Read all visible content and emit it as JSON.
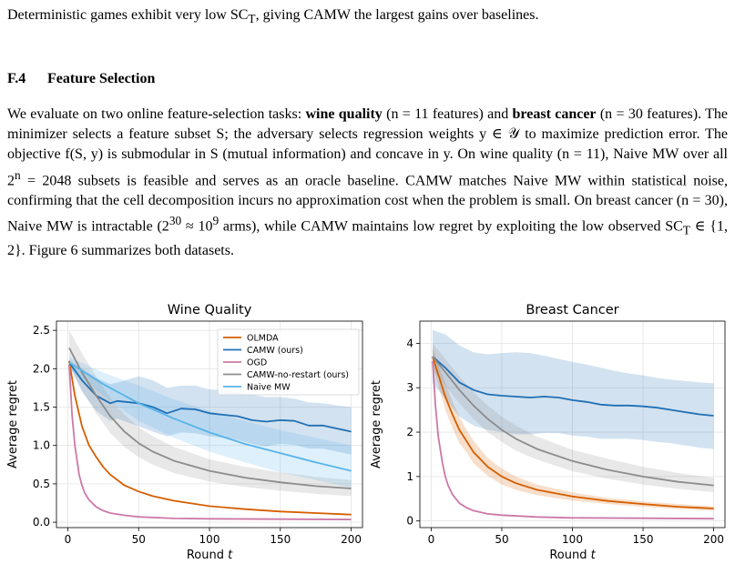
{
  "intro_line": {
    "text": "Deterministic games exhibit very low SC",
    "sub": "T",
    "rest": ", giving CAMW the largest gains over baselines."
  },
  "section": {
    "number": "F.4",
    "title": "Feature Selection"
  },
  "paragraph": {
    "p1": "We evaluate on two online feature-selection tasks: ",
    "b1": "wine quality",
    "p2": " (n = 11 features) and ",
    "b2": "breast cancer",
    "p3": " (n = 30 features). The minimizer selects a feature subset S; the adversary selects regression weights y ∈ 𝒴 to maximize prediction error. The objective f(S, y) is submodular in S (mutual information) and concave in y. On wine quality (n = 11), Naive MW over all 2",
    "sup1": "n",
    "p4": " = 2048 subsets is feasible and serves as an oracle baseline. CAMW matches Naive MW within statistical noise, confirming that the cell decomposition incurs no approximation cost when the problem is small. On breast cancer (n = 30), Naive MW is intractable (2",
    "sup2": "30",
    "p5": " ≈ 10",
    "sup3": "9",
    "p6": " arms), while CAMW maintains low regret by exploiting the low observed SC",
    "sub1": "T",
    "p7": " ∈ {1, 2}. Figure 6 summarizes both datasets."
  },
  "chart_data": [
    {
      "type": "line",
      "title": "Wine Quality",
      "xlabel": "Round t",
      "ylabel": "Average regret",
      "xlim": [
        -8,
        208
      ],
      "ylim": [
        -0.07,
        2.62
      ],
      "xticks": [
        0,
        50,
        100,
        150,
        200
      ],
      "yticks": [
        0.0,
        0.5,
        1.0,
        1.5,
        2.0,
        2.5
      ],
      "ytick_labels": [
        "0.0",
        "0.5",
        "1.0",
        "1.5",
        "2.0",
        "2.5"
      ],
      "grid": true,
      "legend_position": "upper-right",
      "series": [
        {
          "name": "OLMDA",
          "color": "#d55e00",
          "x": [
            1,
            5,
            10,
            15,
            20,
            25,
            30,
            40,
            50,
            60,
            75,
            100,
            125,
            150,
            175,
            200
          ],
          "y": [
            2.1,
            1.65,
            1.25,
            1.0,
            0.85,
            0.72,
            0.62,
            0.48,
            0.4,
            0.34,
            0.28,
            0.21,
            0.17,
            0.14,
            0.12,
            0.1
          ]
        },
        {
          "name": "CAMW (ours)",
          "color": "#1f6fb4",
          "x": [
            1,
            10,
            20,
            30,
            35,
            50,
            60,
            70,
            80,
            90,
            100,
            110,
            120,
            130,
            140,
            150,
            160,
            170,
            180,
            190,
            200
          ],
          "y": [
            2.08,
            1.85,
            1.65,
            1.55,
            1.58,
            1.55,
            1.5,
            1.42,
            1.48,
            1.47,
            1.42,
            1.4,
            1.38,
            1.33,
            1.31,
            1.33,
            1.32,
            1.26,
            1.26,
            1.22,
            1.18
          ],
          "band_upper": [
            2.12,
            2.0,
            1.88,
            1.8,
            1.82,
            1.9,
            1.85,
            1.75,
            1.78,
            1.78,
            1.73,
            1.72,
            1.7,
            1.66,
            1.63,
            1.63,
            1.61,
            1.56,
            1.55,
            1.52,
            1.5
          ],
          "band_lower": [
            2.04,
            1.7,
            1.45,
            1.32,
            1.35,
            1.25,
            1.18,
            1.12,
            1.17,
            1.16,
            1.12,
            1.1,
            1.07,
            1.02,
            0.99,
            1.02,
            1.01,
            0.96,
            0.96,
            0.92,
            0.88
          ]
        },
        {
          "name": "OGD",
          "color": "#cc79a7",
          "x": [
            1,
            3,
            5,
            8,
            10,
            12,
            15,
            20,
            25,
            30,
            40,
            50,
            75,
            100,
            150,
            200
          ],
          "y": [
            2.05,
            1.4,
            1.0,
            0.62,
            0.48,
            0.38,
            0.29,
            0.2,
            0.15,
            0.12,
            0.09,
            0.07,
            0.05,
            0.045,
            0.04,
            0.035
          ]
        },
        {
          "name": "CAMW-no-restart (ours)",
          "color": "#8c8c8c",
          "x": [
            1,
            10,
            20,
            30,
            40,
            50,
            60,
            75,
            100,
            125,
            150,
            175,
            200
          ],
          "y": [
            2.27,
            1.95,
            1.65,
            1.38,
            1.18,
            1.03,
            0.92,
            0.8,
            0.67,
            0.58,
            0.52,
            0.47,
            0.44
          ],
          "band_upper": [
            2.5,
            2.2,
            1.9,
            1.62,
            1.4,
            1.24,
            1.12,
            0.98,
            0.82,
            0.72,
            0.65,
            0.59,
            0.55
          ],
          "band_lower": [
            2.05,
            1.72,
            1.42,
            1.16,
            0.98,
            0.85,
            0.75,
            0.64,
            0.53,
            0.46,
            0.41,
            0.37,
            0.34
          ]
        },
        {
          "name": "Naive MW",
          "color": "#56b4e9",
          "x": [
            1,
            25,
            50,
            75,
            100,
            125,
            150,
            175,
            200
          ],
          "y": [
            2.08,
            1.8,
            1.55,
            1.35,
            1.17,
            1.02,
            0.9,
            0.78,
            0.67
          ],
          "band_upper": [
            2.15,
            1.95,
            1.78,
            1.6,
            1.45,
            1.32,
            1.2,
            1.1,
            1.0
          ],
          "band_lower": [
            2.0,
            1.65,
            1.32,
            1.1,
            0.92,
            0.78,
            0.65,
            0.55,
            0.45
          ]
        }
      ]
    },
    {
      "type": "line",
      "title": "Breast Cancer",
      "xlabel": "Round t",
      "ylabel": "Average regret",
      "xlim": [
        -8,
        208
      ],
      "ylim": [
        -0.15,
        4.5
      ],
      "xticks": [
        0,
        50,
        100,
        150,
        200
      ],
      "yticks": [
        0,
        1,
        2,
        3,
        4
      ],
      "ytick_labels": [
        "0",
        "1",
        "2",
        "3",
        "4"
      ],
      "grid": true,
      "series": [
        {
          "name": "OLMDA",
          "color": "#d55e00",
          "x": [
            1,
            5,
            10,
            15,
            20,
            25,
            30,
            40,
            50,
            60,
            75,
            100,
            125,
            150,
            175,
            200
          ],
          "y": [
            3.7,
            3.3,
            2.8,
            2.4,
            2.05,
            1.8,
            1.55,
            1.22,
            1.0,
            0.85,
            0.7,
            0.55,
            0.45,
            0.38,
            0.32,
            0.28
          ],
          "band_upper": [
            3.9,
            3.55,
            3.1,
            2.7,
            2.35,
            2.05,
            1.8,
            1.42,
            1.18,
            1.0,
            0.82,
            0.64,
            0.52,
            0.44,
            0.38,
            0.33
          ],
          "band_lower": [
            3.5,
            3.05,
            2.5,
            2.1,
            1.75,
            1.55,
            1.3,
            1.02,
            0.82,
            0.7,
            0.58,
            0.46,
            0.38,
            0.32,
            0.27,
            0.23
          ]
        },
        {
          "name": "CAMW (ours)",
          "color": "#1f6fb4",
          "x": [
            1,
            10,
            20,
            30,
            40,
            50,
            60,
            70,
            80,
            90,
            100,
            110,
            120,
            130,
            140,
            150,
            160,
            170,
            180,
            190,
            200
          ],
          "y": [
            3.7,
            3.45,
            3.12,
            2.95,
            2.85,
            2.82,
            2.8,
            2.78,
            2.8,
            2.78,
            2.72,
            2.68,
            2.62,
            2.6,
            2.6,
            2.58,
            2.55,
            2.5,
            2.45,
            2.4,
            2.37
          ],
          "band_upper": [
            4.3,
            4.2,
            3.95,
            3.8,
            3.75,
            3.78,
            3.8,
            3.78,
            3.72,
            3.65,
            3.58,
            3.52,
            3.45,
            3.38,
            3.32,
            3.28,
            3.22,
            3.18,
            3.15,
            3.12,
            3.1
          ],
          "band_lower": [
            3.1,
            2.75,
            2.35,
            2.15,
            2.05,
            2.0,
            1.95,
            1.95,
            1.98,
            1.98,
            1.92,
            1.9,
            1.85,
            1.85,
            1.85,
            1.82,
            1.78,
            1.75,
            1.7,
            1.65,
            1.62
          ]
        },
        {
          "name": "OGD",
          "color": "#cc79a7",
          "x": [
            1,
            3,
            5,
            8,
            10,
            12,
            15,
            20,
            25,
            30,
            40,
            50,
            75,
            100,
            150,
            200
          ],
          "y": [
            3.6,
            2.6,
            1.9,
            1.3,
            1.0,
            0.8,
            0.6,
            0.4,
            0.3,
            0.23,
            0.16,
            0.13,
            0.09,
            0.07,
            0.06,
            0.05
          ]
        },
        {
          "name": "CAMW-no-restart (ours)",
          "color": "#8c8c8c",
          "x": [
            1,
            10,
            20,
            30,
            40,
            50,
            60,
            75,
            100,
            125,
            150,
            175,
            200
          ],
          "y": [
            3.7,
            3.35,
            2.95,
            2.6,
            2.3,
            2.05,
            1.85,
            1.62,
            1.35,
            1.15,
            1.0,
            0.88,
            0.8
          ],
          "band_upper": [
            4.0,
            3.65,
            3.25,
            2.9,
            2.6,
            2.35,
            2.15,
            1.9,
            1.6,
            1.4,
            1.22,
            1.08,
            0.97
          ],
          "band_lower": [
            3.4,
            3.05,
            2.65,
            2.3,
            2.0,
            1.78,
            1.58,
            1.38,
            1.12,
            0.95,
            0.82,
            0.72,
            0.65
          ]
        }
      ]
    }
  ]
}
